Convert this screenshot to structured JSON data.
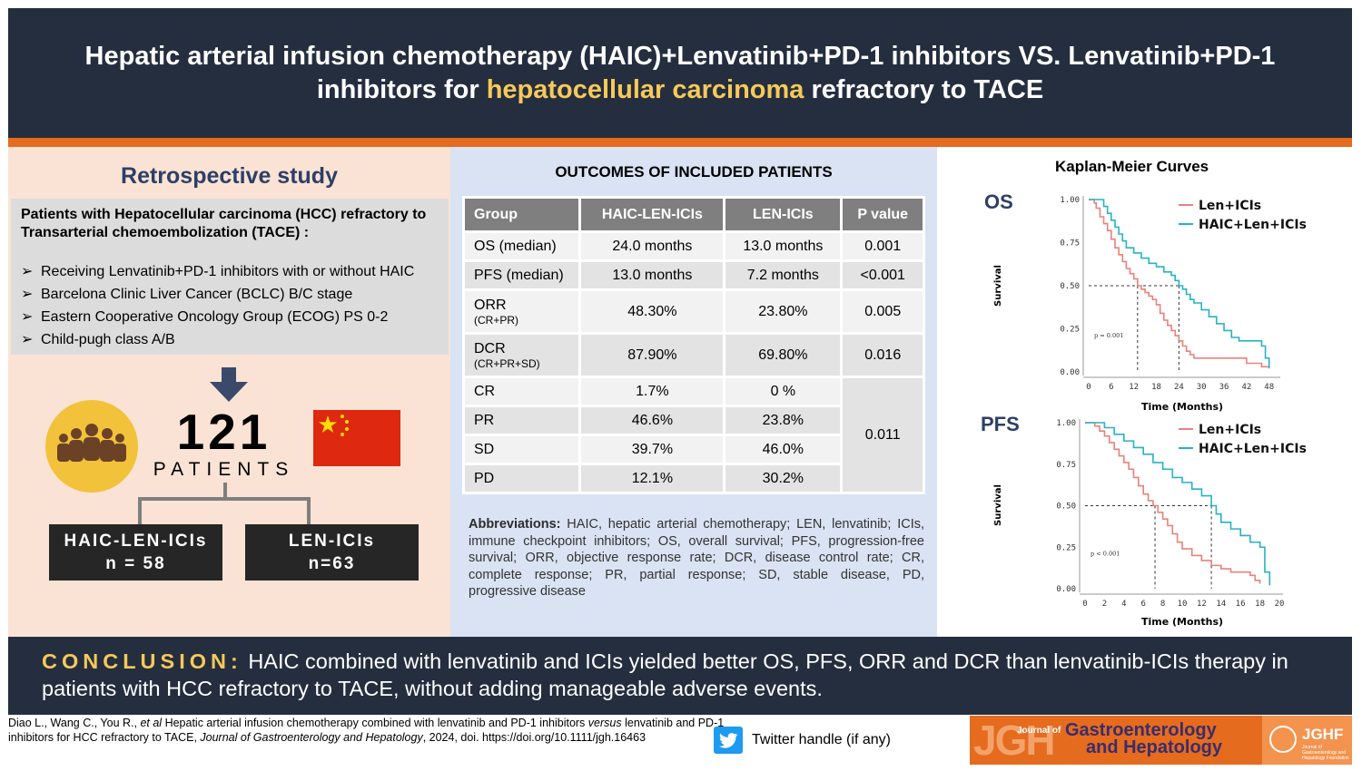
{
  "header": {
    "line1": "Hepatic arterial infusion chemotherapy (HAIC)+Lenvatinib+PD-1 inhibitors VS. Lenvatinib+PD-1",
    "line2_pre": "inhibitors for ",
    "line2_highlight": "hepatocellular carcinoma",
    "line2_post": " refractory to TACE"
  },
  "left": {
    "study_title": "Retrospective study",
    "criteria_title": "Patients with Hepatocellular carcinoma (HCC) refractory to Transarterial chemoembolization (TACE) :",
    "bullet": "➢",
    "criteria": [
      "Receiving Lenvatinib+PD-1 inhibitors with or without HAIC",
      "Barcelona Clinic Liver Cancer (BCLC) B/C stage",
      "Eastern Cooperative Oncology Group (ECOG) PS 0-2",
      "Child-pugh class A/B"
    ],
    "count": "121",
    "count_label": "PATIENTS",
    "groups": [
      {
        "name": "HAIC-LEN-ICIs",
        "n": "n = 58"
      },
      {
        "name": "LEN-ICIs",
        "n": "n=63"
      }
    ]
  },
  "outcomes": {
    "title": "OUTCOMES OF INCLUDED PATIENTS",
    "headers": [
      "Group",
      "HAIC-LEN-ICIs",
      "LEN-ICIs",
      "P value"
    ],
    "rows": [
      {
        "label": "OS (median)",
        "sub": "",
        "haic": "24.0 months",
        "len": "13.0 months",
        "p": "0.001"
      },
      {
        "label": "PFS (median)",
        "sub": "",
        "haic": "13.0 months",
        "len": "7.2 months",
        "p": "<0.001"
      },
      {
        "label": "ORR",
        "sub": "(CR+PR)",
        "haic": "48.30%",
        "len": "23.80%",
        "p": "0.005"
      },
      {
        "label": "DCR",
        "sub": "(CR+PR+SD)",
        "haic": "87.90%",
        "len": "69.80%",
        "p": "0.016"
      },
      {
        "label": "CR",
        "sub": "",
        "haic": "1.7%",
        "len": "0 %",
        "p": "0.011"
      },
      {
        "label": "PR",
        "sub": "",
        "haic": "46.6%",
        "len": "23.8%",
        "p": ""
      },
      {
        "label": "SD",
        "sub": "",
        "haic": "39.7%",
        "len": "46.0%",
        "p": ""
      },
      {
        "label": "PD",
        "sub": "",
        "haic": "12.1%",
        "len": "30.2%",
        "p": ""
      }
    ],
    "abbr_label": "Abbreviations:",
    "abbr_text": " HAIC, hepatic arterial chemotherapy; LEN, lenvatinib; ICIs, immune checkpoint inhibitors; OS, overall survival; PFS, progression-free survival; ORR, objective response rate; DCR, disease control rate; CR, complete response; PR, partial response; SD, stable disease, PD, progressive disease"
  },
  "km": {
    "title": "Kaplan-Meier Curves",
    "colors": {
      "len": "#e8827a",
      "haic": "#27b3c2"
    }
  },
  "chart_data": [
    {
      "type": "line",
      "title": "OS",
      "xlabel": "Time (Months)",
      "ylabel": "Survival",
      "xlim": [
        0,
        50
      ],
      "ylim": [
        0,
        1
      ],
      "xticks": [
        "0",
        "6",
        "12",
        "18",
        "24",
        "30",
        "36",
        "42",
        "48"
      ],
      "yticks": [
        "0.00",
        "0.25",
        "0.50",
        "0.75",
        "1.00"
      ],
      "annotation": "p = 0.001",
      "median_markers": [
        13,
        24
      ],
      "legend": "top-right",
      "series": [
        {
          "name": "Len+ICIs",
          "x": [
            0,
            1.5,
            2,
            3,
            4,
            5,
            6,
            7,
            8,
            9,
            10,
            11,
            12,
            13,
            14,
            15,
            16,
            17,
            18,
            19,
            20,
            21,
            22,
            23,
            24,
            25,
            26,
            27,
            28,
            30,
            32,
            34,
            36,
            38,
            40,
            42,
            44,
            46,
            48
          ],
          "y": [
            1,
            0.98,
            0.95,
            0.9,
            0.86,
            0.82,
            0.77,
            0.72,
            0.68,
            0.64,
            0.6,
            0.57,
            0.54,
            0.5,
            0.48,
            0.46,
            0.44,
            0.42,
            0.39,
            0.34,
            0.3,
            0.27,
            0.24,
            0.21,
            0.18,
            0.15,
            0.12,
            0.1,
            0.08,
            0.08,
            0.08,
            0.08,
            0.08,
            0.08,
            0.08,
            0.05,
            0.05,
            0.03,
            0.03
          ]
        },
        {
          "name": "HAIC+Len+ICIs",
          "x": [
            0,
            3,
            4,
            5,
            6,
            7,
            8,
            9,
            10,
            12,
            14,
            16,
            18,
            20,
            22,
            23,
            24,
            25,
            26,
            27,
            28,
            30,
            32,
            34,
            36,
            38,
            40,
            42,
            44,
            46,
            47,
            48
          ],
          "y": [
            1,
            1,
            0.96,
            0.92,
            0.88,
            0.84,
            0.8,
            0.76,
            0.72,
            0.69,
            0.66,
            0.63,
            0.61,
            0.58,
            0.56,
            0.53,
            0.5,
            0.48,
            0.45,
            0.42,
            0.4,
            0.36,
            0.32,
            0.28,
            0.24,
            0.2,
            0.18,
            0.18,
            0.18,
            0.15,
            0.08,
            0.02
          ]
        }
      ]
    },
    {
      "type": "line",
      "title": "PFS",
      "xlabel": "Time (Months)",
      "ylabel": "Survival",
      "xlim": [
        0,
        20
      ],
      "ylim": [
        0,
        1
      ],
      "xticks": [
        "0",
        "2",
        "4",
        "6",
        "8",
        "10",
        "12",
        "14",
        "16",
        "18",
        "20"
      ],
      "yticks": [
        "0.00",
        "0.25",
        "0.50",
        "0.75",
        "1.00"
      ],
      "annotation": "p < 0.001",
      "median_markers": [
        7.2,
        13
      ],
      "legend": "top-right",
      "series": [
        {
          "name": "Len+ICIs",
          "x": [
            0,
            1,
            1.5,
            2,
            2.5,
            3,
            3.5,
            4,
            4.5,
            5,
            5.5,
            6,
            6.5,
            7,
            7.5,
            8,
            8.5,
            9,
            9.5,
            10,
            11,
            12,
            13,
            14,
            15,
            16,
            17,
            17.5,
            18
          ],
          "y": [
            1,
            0.98,
            0.95,
            0.92,
            0.88,
            0.84,
            0.8,
            0.76,
            0.72,
            0.67,
            0.62,
            0.57,
            0.53,
            0.5,
            0.46,
            0.42,
            0.38,
            0.33,
            0.28,
            0.24,
            0.2,
            0.17,
            0.14,
            0.12,
            0.1,
            0.1,
            0.08,
            0.05,
            0.03
          ]
        },
        {
          "name": "HAIC+Len+ICIs",
          "x": [
            0,
            1.5,
            2,
            3,
            4,
            5,
            6,
            7,
            8,
            9,
            10,
            11,
            12,
            13,
            13.5,
            14,
            15,
            16,
            17,
            18,
            18.5,
            19
          ],
          "y": [
            1,
            1,
            0.97,
            0.93,
            0.89,
            0.85,
            0.81,
            0.76,
            0.72,
            0.67,
            0.64,
            0.6,
            0.56,
            0.5,
            0.45,
            0.4,
            0.36,
            0.32,
            0.28,
            0.25,
            0.1,
            0.02
          ]
        }
      ]
    }
  ],
  "conclusion": {
    "label": "CONCLUSION:",
    "text": " HAIC combined with lenvatinib and ICIs yielded better OS, PFS, ORR and DCR than lenvatinib-ICIs therapy in patients with HCC refractory to TACE, without adding manageable adverse events."
  },
  "citation": {
    "authors": "Diao L., Wang C., You R., ",
    "etal": "et al",
    "t1": " Hepatic arterial infusion chemotherapy combined with lenvatinib and PD-1 inhibitors ",
    "versus": "versus",
    "t2": " lenvatinib and PD-1 inhibitors for HCC refractory to TACE, ",
    "journal": "Journal of Gastroenterology and Hepatology",
    "t3": ", 2024, doi. https://doi.org/10.1111/jgh.16463"
  },
  "twitter": {
    "label": "Twitter handle (if any)"
  },
  "logos": {
    "jgh": "JGH",
    "journal_of": "Journal of",
    "gastro": "Gastroenterology",
    "hep": "and Hepatology",
    "jghf": "JGHF",
    "jghf_sub": "Journal of Gastroenterology and Hepatology Foundation"
  }
}
